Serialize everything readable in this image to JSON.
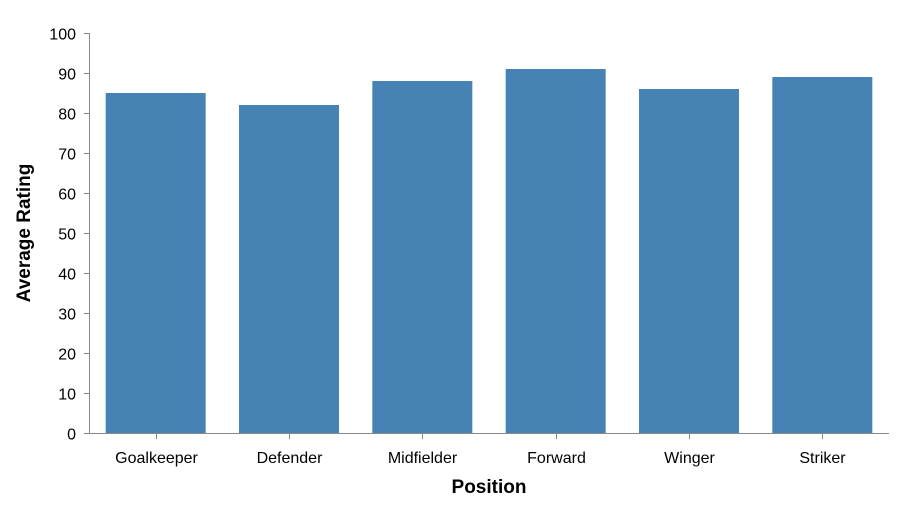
{
  "chart_data": {
    "type": "bar",
    "title": "",
    "xlabel": "Position",
    "ylabel": "Average Rating",
    "categories": [
      "Goalkeeper",
      "Defender",
      "Midfielder",
      "Forward",
      "Winger",
      "Striker"
    ],
    "values": [
      85,
      82,
      88,
      91,
      86,
      89
    ],
    "ylim": [
      0,
      100
    ],
    "yticks": [
      0,
      10,
      20,
      30,
      40,
      50,
      60,
      70,
      80,
      90,
      100
    ],
    "grid": false,
    "legend": "none",
    "colors": {
      "bar": "#4682b4",
      "axis": "#888888",
      "text": "#000000"
    }
  }
}
